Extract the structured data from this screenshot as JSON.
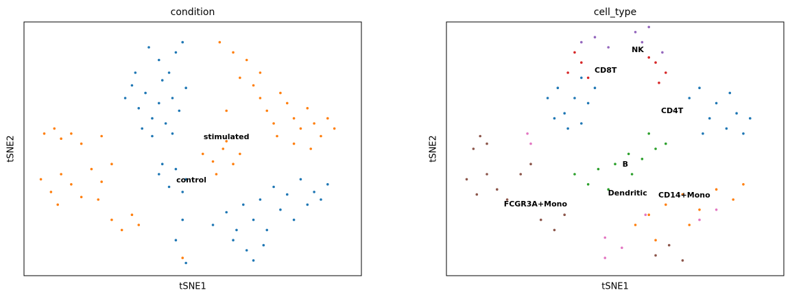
{
  "chart_data": [
    {
      "type": "scatter",
      "title": "condition",
      "x_label": "tSNE1",
      "y_label": "tSNE2",
      "xlim": [
        0,
        100
      ],
      "ylim": [
        0,
        100
      ],
      "legend": "on data",
      "series": [
        {
          "name": "control",
          "color": "#1f77b4",
          "label_position": [
            49.6,
            37.6
          ],
          "x": [
            30,
            32,
            34,
            36,
            38,
            40,
            41,
            42,
            44,
            46,
            35,
            38,
            43,
            45,
            40,
            47,
            37,
            48,
            33,
            44,
            40,
            43,
            45,
            48,
            41,
            47,
            56,
            60,
            63,
            65,
            68,
            70,
            72,
            74,
            76,
            78,
            80,
            82,
            84,
            86,
            88,
            90,
            66,
            68,
            71,
            62,
            47,
            45,
            48
          ],
          "y": [
            70,
            75,
            66,
            72,
            62,
            68,
            77,
            60,
            70,
            65,
            58,
            55,
            80,
            88,
            85,
            92,
            90,
            74,
            80,
            56,
            40,
            35,
            42,
            38,
            44,
            33,
            20,
            25,
            18,
            28,
            22,
            30,
            18,
            35,
            26,
            32,
            22,
            38,
            28,
            33,
            30,
            36,
            10,
            6,
            12,
            14,
            22,
            14,
            5
          ]
        },
        {
          "name": "stimulated",
          "color": "#ff7f0e",
          "label_position": [
            60,
            54.6
          ],
          "x": [
            58,
            62,
            66,
            64,
            68,
            70,
            72,
            74,
            76,
            78,
            80,
            82,
            84,
            86,
            88,
            90,
            92,
            80,
            85,
            75,
            70,
            60,
            53,
            56,
            59,
            62,
            64,
            57,
            60,
            6,
            9,
            11,
            14,
            17,
            23,
            5,
            8,
            11,
            14,
            17,
            20,
            23,
            26,
            10,
            22,
            26,
            29,
            32,
            34,
            47
          ],
          "y": [
            92,
            88,
            85,
            78,
            75,
            70,
            65,
            60,
            72,
            68,
            62,
            58,
            66,
            60,
            55,
            62,
            58,
            52,
            50,
            55,
            80,
            65,
            48,
            45,
            50,
            44,
            48,
            40,
            53,
            56,
            58,
            54,
            56,
            52,
            55,
            38,
            33,
            40,
            36,
            31,
            42,
            37,
            44,
            28,
            30,
            22,
            18,
            24,
            20,
            7
          ]
        }
      ]
    },
    {
      "type": "scatter",
      "title": "cell_type",
      "x_label": "tSNE1",
      "y_label": "tSNE2",
      "xlim": [
        0,
        100
      ],
      "ylim": [
        0,
        100
      ],
      "legend": "on data",
      "series": [
        {
          "name": "CD4T",
          "color": "#1f77b4",
          "label_position": [
            66.9,
            64.9
          ],
          "x": [
            30,
            33,
            35,
            38,
            40,
            42,
            36,
            44,
            32,
            40,
            72,
            75,
            78,
            80,
            83,
            86,
            88,
            90,
            76,
            84
          ],
          "y": [
            70,
            74,
            64,
            70,
            60,
            68,
            58,
            74,
            62,
            78,
            70,
            74,
            62,
            68,
            58,
            64,
            56,
            62,
            56,
            72
          ]
        },
        {
          "name": "CD14+Mono",
          "color": "#ff7f0e",
          "label_position": [
            70.5,
            31.6
          ],
          "x": [
            56,
            60,
            65,
            70,
            75,
            80,
            85,
            88,
            72,
            62
          ],
          "y": [
            20,
            24,
            28,
            32,
            26,
            34,
            30,
            36,
            20,
            14
          ]
        },
        {
          "name": "B",
          "color": "#2ca02c",
          "label_position": [
            53,
            43.8
          ],
          "x": [
            38,
            42,
            45,
            50,
            54,
            58,
            62,
            65,
            60,
            55,
            48
          ],
          "y": [
            40,
            36,
            42,
            44,
            48,
            46,
            50,
            52,
            56,
            40,
            34
          ]
        },
        {
          "name": "CD8T",
          "color": "#d62728",
          "label_position": [
            47.2,
            80.8
          ],
          "x": [
            36,
            40,
            42,
            38,
            62,
            65,
            60,
            63
          ],
          "y": [
            80,
            84,
            78,
            88,
            84,
            80,
            86,
            76
          ]
        },
        {
          "name": "NK",
          "color": "#9467bd",
          "label_position": [
            56.7,
            88.9
          ],
          "x": [
            40,
            44,
            48,
            56,
            58,
            60,
            64
          ],
          "y": [
            92,
            94,
            90,
            96,
            92,
            98,
            88
          ]
        },
        {
          "name": "FCGR3A+Mono",
          "color": "#8c564b",
          "label_position": [
            26.4,
            28.1
          ],
          "x": [
            8,
            10,
            12,
            6,
            9,
            12,
            15,
            18,
            22,
            25,
            28,
            32,
            35,
            62,
            66,
            70
          ],
          "y": [
            50,
            55,
            52,
            38,
            32,
            40,
            34,
            30,
            40,
            44,
            22,
            18,
            24,
            8,
            12,
            6
          ]
        },
        {
          "name": "Dendritic",
          "color": "#e377c2",
          "label_position": [
            53.7,
            32.4
          ],
          "x": [
            24,
            25,
            47,
            59,
            52,
            47,
            75,
            80
          ],
          "y": [
            56,
            52,
            15,
            24,
            11,
            7,
            22,
            26
          ]
        }
      ]
    }
  ]
}
